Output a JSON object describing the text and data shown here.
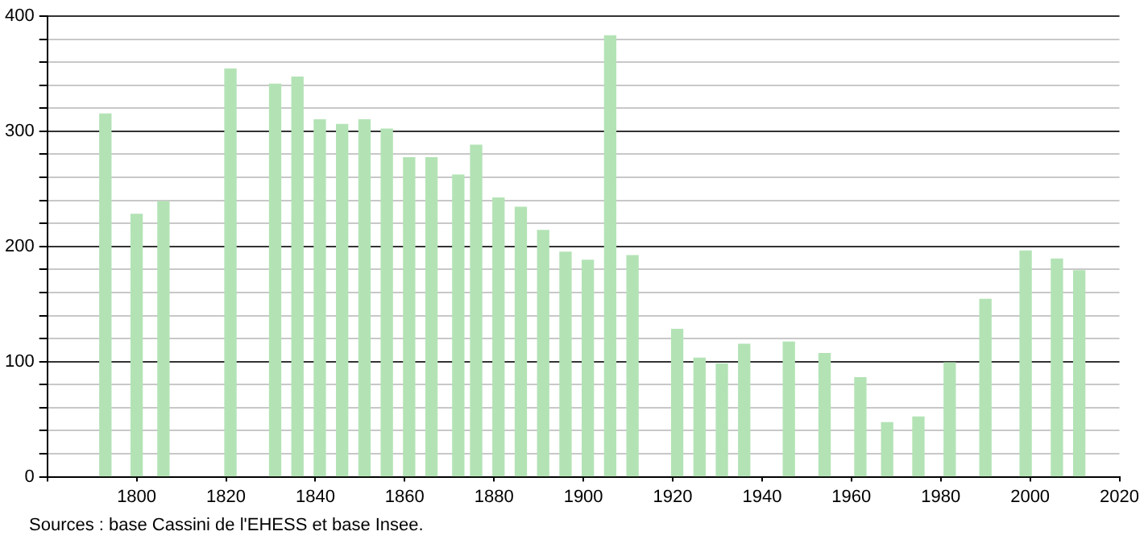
{
  "chart_data": {
    "type": "bar",
    "x": [
      1793,
      1800,
      1806,
      1821,
      1831,
      1836,
      1841,
      1846,
      1851,
      1856,
      1861,
      1866,
      1872,
      1876,
      1881,
      1886,
      1891,
      1896,
      1901,
      1906,
      1911,
      1921,
      1926,
      1931,
      1936,
      1946,
      1954,
      1962,
      1968,
      1975,
      1982,
      1990,
      1999,
      2006,
      2011
    ],
    "values": [
      315,
      228,
      239,
      354,
      341,
      347,
      310,
      306,
      310,
      302,
      277,
      277,
      262,
      288,
      242,
      234,
      214,
      195,
      188,
      383,
      192,
      128,
      103,
      98,
      115,
      117,
      107,
      86,
      47,
      52,
      99,
      154,
      196,
      189,
      179
    ],
    "color": "#b3e3b5",
    "xlim": [
      1780,
      2020
    ],
    "xticks": [
      {
        "value": 1780,
        "label": null
      },
      1800,
      1820,
      1840,
      1860,
      1880,
      1900,
      1920,
      1940,
      1960,
      1980,
      2000,
      2020
    ],
    "ylim": [
      0,
      400
    ],
    "yticks": [
      0,
      {
        "value": 20,
        "label": null
      },
      {
        "value": 40,
        "label": null
      },
      {
        "value": 60,
        "label": null
      },
      {
        "value": 80,
        "label": null
      },
      100,
      {
        "value": 120,
        "label": null
      },
      {
        "value": 140,
        "label": null
      },
      {
        "value": 160,
        "label": null
      },
      {
        "value": 180,
        "label": null
      },
      200,
      {
        "value": 220,
        "label": null
      },
      {
        "value": 240,
        "label": null
      },
      {
        "value": 260,
        "label": null
      },
      {
        "value": 280,
        "label": null
      },
      300,
      {
        "value": 320,
        "label": null
      },
      {
        "value": 340,
        "label": null
      },
      {
        "value": 360,
        "label": null
      },
      {
        "value": 380,
        "label": null
      },
      400
    ],
    "grid": "y",
    "annotations": [
      "Sources : base Cassini de l'EHESS et base Insee."
    ]
  }
}
